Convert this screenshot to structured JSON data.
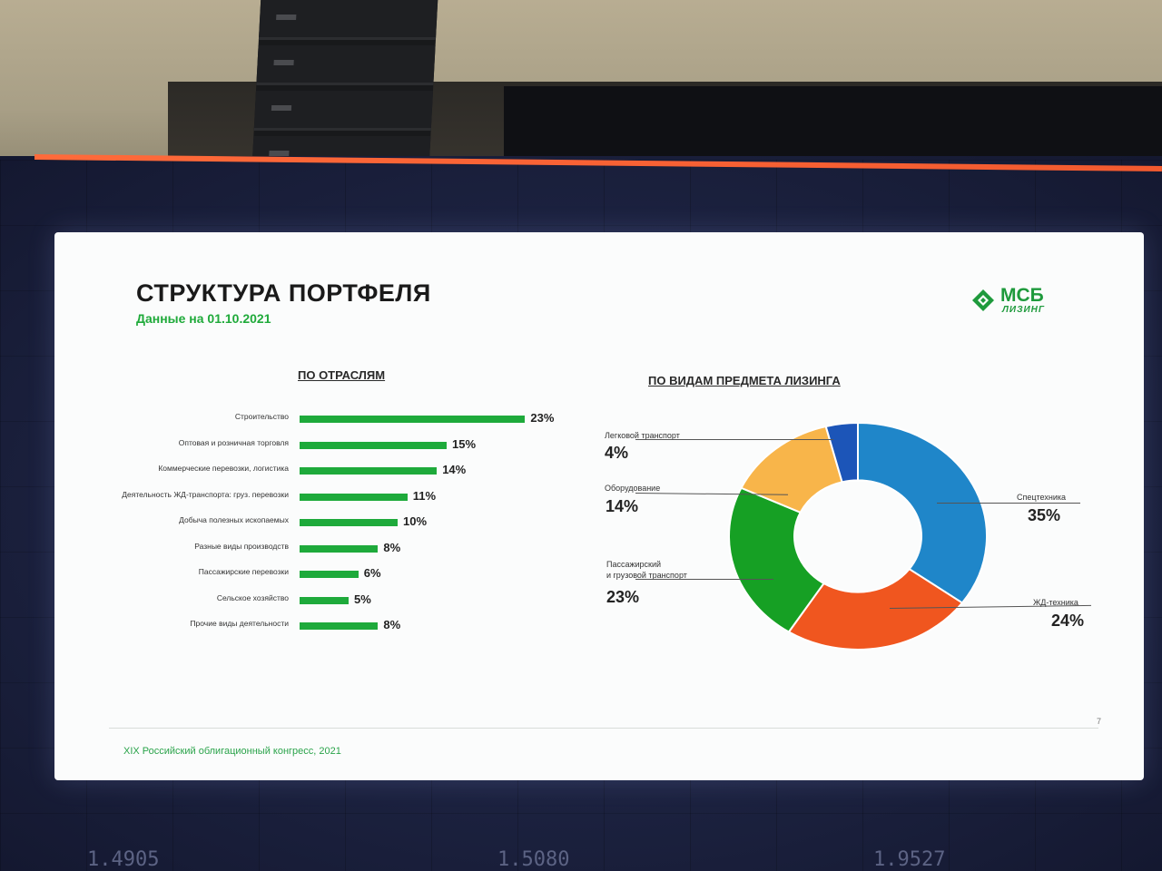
{
  "slide": {
    "title": "СТРУКТУРА ПОРТФЕЛЯ",
    "subtitle": "Данные на 01.10.2021",
    "logo_line1": "МСБ",
    "logo_line2": "ЛИЗИНГ",
    "footer": "XIX Российский облигационный конгресс, 2021",
    "page": "7"
  },
  "colors": {
    "bar": "#1eaa3b",
    "accent": "#1e9a3c",
    "blue": "#1f86c9",
    "orange": "#f0561f",
    "green": "#16a024",
    "yellow": "#f8b54a",
    "darkblue": "#1c55b8"
  },
  "led_text": [
    "1.4905",
    "1.5080",
    "1.9527"
  ],
  "chart_data": [
    {
      "type": "bar",
      "orientation": "horizontal",
      "title": "ПО ОТРАСЛЯМ",
      "categories": [
        "Строительство",
        "Оптовая и розничная торговля",
        "Коммерческие перевозки, логистика",
        "Деятельность ЖД-транспорта: груз. перевозки",
        "Добыча полезных ископаемых",
        "Разные виды производств",
        "Пассажирские перевозки",
        "Сельское хозяйство",
        "Прочие виды деятельности"
      ],
      "values": [
        23,
        15,
        14,
        11,
        10,
        8,
        6,
        5,
        8
      ],
      "value_labels": [
        "23%",
        "15%",
        "14%",
        "11%",
        "10%",
        "8%",
        "6%",
        "5%",
        "8%"
      ],
      "unit": "%"
    },
    {
      "type": "pie",
      "variant": "donut",
      "title": "ПО ВИДАМ ПРЕДМЕТА ЛИЗИНГА",
      "slices": [
        {
          "label": "Спецтехника",
          "value": 35,
          "pct": "35%",
          "color": "#1f86c9"
        },
        {
          "label": "ЖД-техника",
          "value": 24,
          "pct": "24%",
          "color": "#f0561f"
        },
        {
          "label_lines": [
            "Пассажирский",
            "и грузовой транспорт"
          ],
          "value": 23,
          "pct": "23%",
          "color": "#16a024"
        },
        {
          "label": "Оборудование",
          "value": 14,
          "pct": "14%",
          "color": "#f8b54a"
        },
        {
          "label": "Легковой транспорт",
          "value": 4,
          "pct": "4%",
          "color": "#1c55b8"
        }
      ]
    }
  ]
}
